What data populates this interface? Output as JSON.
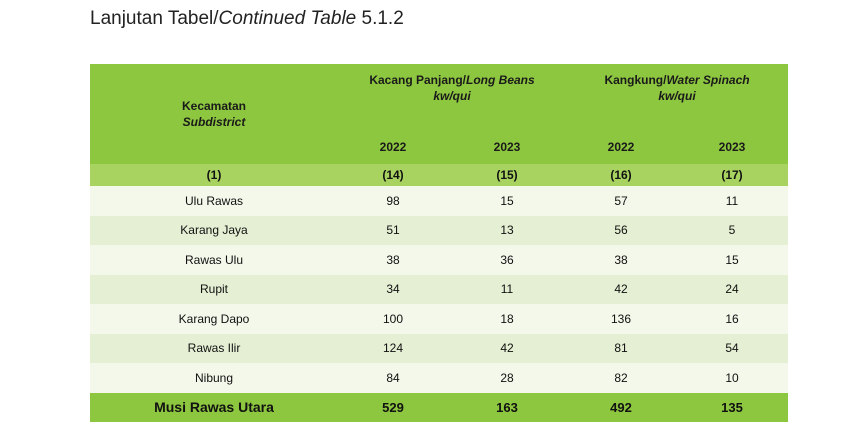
{
  "title": {
    "normal": "Lanjutan Tabel/",
    "italic": "Continued Table",
    "number": " 5.1.2"
  },
  "table": {
    "col1": {
      "label": "Kecamatan",
      "label_en": "Subdistrict"
    },
    "group1": {
      "label": "Kacang Panjang/",
      "label_en": "Long Beans",
      "unit": "kw/qui"
    },
    "group2": {
      "label": "Kangkung/",
      "label_en": "Water Spinach",
      "unit": "kw/qui"
    },
    "years": [
      "2022",
      "2023",
      "2022",
      "2023"
    ],
    "col_numbers": [
      "(1)",
      "(14)",
      "(15)",
      "(16)",
      "(17)"
    ],
    "rows": [
      {
        "name": "Ulu Rawas",
        "v": [
          "98",
          "15",
          "57",
          "11"
        ]
      },
      {
        "name": "Karang Jaya",
        "v": [
          "51",
          "13",
          "56",
          "5"
        ]
      },
      {
        "name": "Rawas Ulu",
        "v": [
          "38",
          "36",
          "38",
          "15"
        ]
      },
      {
        "name": "Rupit",
        "v": [
          "34",
          "11",
          "42",
          "24"
        ]
      },
      {
        "name": "Karang Dapo",
        "v": [
          "100",
          "18",
          "136",
          "16"
        ]
      },
      {
        "name": "Rawas Ilir",
        "v": [
          "124",
          "42",
          "81",
          "54"
        ]
      },
      {
        "name": "Nibung",
        "v": [
          "84",
          "28",
          "82",
          "10"
        ]
      }
    ],
    "total": {
      "name": "Musi Rawas Utara",
      "v": [
        "529",
        "163",
        "492",
        "135"
      ]
    }
  }
}
